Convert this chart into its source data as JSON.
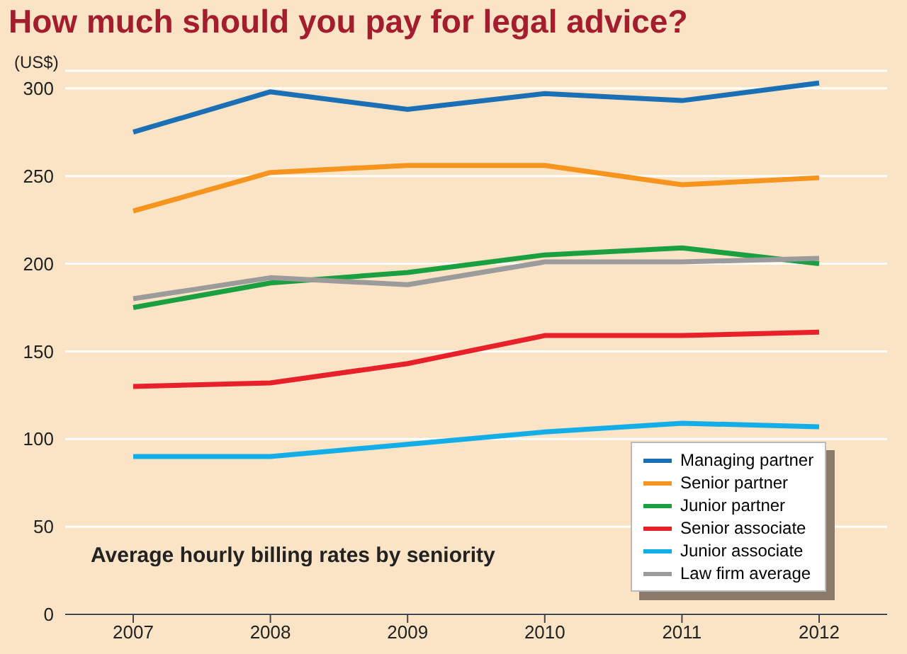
{
  "chart_data": {
    "type": "line",
    "title": "How much should you pay for legal advice?",
    "ylabel": "(US$)",
    "annotations": [
      "Average hourly billing rates by seniority"
    ],
    "categories": [
      "2007",
      "2008",
      "2009",
      "2010",
      "2011",
      "2012"
    ],
    "series": [
      {
        "name": "Managing partner",
        "color": "#1a6fb5",
        "values": [
          275,
          298,
          288,
          297,
          293,
          303
        ]
      },
      {
        "name": "Senior partner",
        "color": "#f7941d",
        "values": [
          230,
          252,
          256,
          256,
          245,
          249
        ]
      },
      {
        "name": "Junior partner",
        "color": "#1aa040",
        "values": [
          175,
          189,
          195,
          205,
          209,
          200
        ]
      },
      {
        "name": "Senior associate",
        "color": "#e8202a",
        "values": [
          130,
          132,
          143,
          159,
          159,
          161
        ]
      },
      {
        "name": "Junior associate",
        "color": "#13aee8",
        "values": [
          90,
          90,
          97,
          104,
          109,
          107
        ]
      },
      {
        "name": "Law firm average",
        "color": "#9b9b9b",
        "values": [
          180,
          192,
          188,
          201,
          201,
          203
        ]
      }
    ],
    "ylim": [
      0,
      310
    ],
    "yticks": [
      0,
      50,
      100,
      150,
      200,
      250,
      300
    ],
    "grid": "y",
    "legend": "bottom right",
    "marker": "none",
    "line_style": "solid"
  }
}
